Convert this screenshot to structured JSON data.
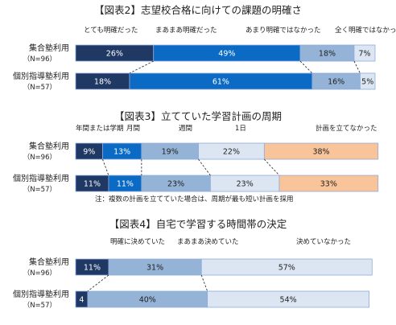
{
  "colors": {
    "navy": "#1f3864",
    "blue": "#0b6bc4",
    "medium": "#95b3d7",
    "light": "#dce6f2",
    "orange": "#f9c499",
    "border": "#8eaadb"
  },
  "chart_data": [
    {
      "type": "bar",
      "title": "【図表2】志望校合格に向けての課題の明確さ",
      "categories": [
        "集合塾利用",
        "個別指導塾利用"
      ],
      "category_notes": [
        "（N=96）",
        "（N=57）"
      ],
      "series": [
        {
          "name": "とても明確だった",
          "values": [
            26,
            18
          ],
          "color_key": "navy"
        },
        {
          "name": "まあまあ明確だった",
          "values": [
            49,
            61
          ],
          "color_key": "blue"
        },
        {
          "name": "あまり明確ではなかった",
          "values": [
            18,
            16
          ],
          "color_key": "medium"
        },
        {
          "name": "全く明確ではなかった",
          "values": [
            7,
            5
          ],
          "color_key": "light"
        }
      ],
      "legend_placement": "top",
      "xlim": [
        0,
        100
      ],
      "unit": "%"
    },
    {
      "type": "bar",
      "title": "【図表3】立てていた学習計画の周期",
      "categories": [
        "集合塾利用",
        "個別指導塾利用"
      ],
      "category_notes": [
        "（N=96）",
        "（N=57）"
      ],
      "series": [
        {
          "name": "年間または学期",
          "values": [
            9,
            11
          ],
          "color_key": "navy"
        },
        {
          "name": "月間",
          "values": [
            13,
            11
          ],
          "color_key": "blue"
        },
        {
          "name": "週間",
          "values": [
            19,
            23
          ],
          "color_key": "medium"
        },
        {
          "name": "1日",
          "values": [
            22,
            23
          ],
          "color_key": "light"
        },
        {
          "name": "計画を立てなかった",
          "values": [
            38,
            33
          ],
          "color_key": "orange"
        }
      ],
      "legend_placement": "top",
      "xlim": [
        0,
        100
      ],
      "unit": "%",
      "note": "注：複数の計画を立てていた場合は、周期が最も短い計画を採用"
    },
    {
      "type": "bar",
      "title": "【図表4】自宅で学習する時間帯の決定",
      "categories": [
        "集合塾利用",
        "個別指導塾利用"
      ],
      "category_notes": [
        "（N=96）",
        "（N=57）"
      ],
      "series": [
        {
          "name": "明確に決めていた",
          "values": [
            11,
            4
          ],
          "color_key": "navy"
        },
        {
          "name": "まあまあ決めていた",
          "values": [
            31,
            40
          ],
          "color_key": "medium"
        },
        {
          "name": "決めていなかった",
          "values": [
            57,
            54
          ],
          "color_key": "light"
        }
      ],
      "legend_placement": "top",
      "xlim": [
        0,
        100
      ],
      "unit": "%"
    }
  ]
}
